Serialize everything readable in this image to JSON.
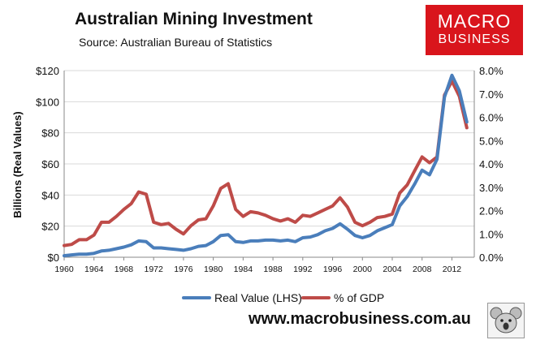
{
  "header": {
    "title": "Australian Mining Investment",
    "subtitle": "Source: Australian Bureau of Statistics"
  },
  "logo": {
    "line1": "MACRO",
    "line2": "BUSINESS",
    "color": "#d9151c"
  },
  "footer": {
    "website": "www.macrobusiness.com.au"
  },
  "mascot": {
    "icon": "koala-emblem-icon"
  },
  "chart_data": {
    "type": "line",
    "ylabel": "Billions (Real Values)",
    "xlabel": "",
    "xlim": [
      1960,
      2015
    ],
    "ylim": [
      0,
      120
    ],
    "y2lim": [
      0,
      8
    ],
    "x_ticks": [
      "1960",
      "1964",
      "1968",
      "1972",
      "1976",
      "1980",
      "1984",
      "1988",
      "1992",
      "1996",
      "2000",
      "2004",
      "2008",
      "2012"
    ],
    "y_ticks": [
      "$0",
      "$20",
      "$40",
      "$60",
      "$80",
      "$100",
      "$120"
    ],
    "y2_ticks": [
      "0.0%",
      "1.0%",
      "2.0%",
      "3.0%",
      "4.0%",
      "5.0%",
      "6.0%",
      "7.0%",
      "8.0%"
    ],
    "grid": true,
    "legend_position": "bottom",
    "series": [
      {
        "name": "Real Value (LHS)",
        "axis": "left",
        "color": "#4a7ebb",
        "x": [
          1960,
          1961,
          1962,
          1963,
          1964,
          1965,
          1966,
          1967,
          1968,
          1969,
          1970,
          1971,
          1972,
          1973,
          1974,
          1975,
          1976,
          1977,
          1978,
          1979,
          1980,
          1981,
          1982,
          1983,
          1984,
          1985,
          1986,
          1987,
          1988,
          1989,
          1990,
          1991,
          1992,
          1993,
          1994,
          1995,
          1996,
          1997,
          1998,
          1999,
          2000,
          2001,
          2002,
          2003,
          2004,
          2005,
          2006,
          2007,
          2008,
          2009,
          2010,
          2011,
          2012,
          2013,
          2014
        ],
        "values": [
          1,
          1.5,
          2,
          2,
          2.5,
          4,
          4.5,
          5.5,
          6.5,
          8,
          10.5,
          10,
          6,
          6,
          5.5,
          5,
          4.5,
          5.5,
          7,
          7.5,
          10,
          14,
          14.5,
          10,
          9.5,
          10.5,
          10.5,
          11,
          11,
          10.5,
          11,
          10,
          12.5,
          13,
          14.5,
          17,
          18.5,
          21.5,
          18,
          14,
          12.5,
          14,
          17,
          19,
          21,
          33,
          39,
          47,
          56,
          53,
          63,
          103,
          117,
          107,
          87
        ]
      },
      {
        "name": "% of GDP",
        "axis": "right",
        "color": "#be4b48",
        "x": [
          1960,
          1961,
          1962,
          1963,
          1964,
          1965,
          1966,
          1967,
          1968,
          1969,
          1970,
          1971,
          1972,
          1973,
          1974,
          1975,
          1976,
          1977,
          1978,
          1979,
          1980,
          1981,
          1982,
          1983,
          1984,
          1985,
          1986,
          1987,
          1988,
          1989,
          1990,
          1991,
          1992,
          1993,
          1994,
          1995,
          1996,
          1997,
          1998,
          1999,
          2000,
          2001,
          2002,
          2003,
          2004,
          2005,
          2006,
          2007,
          2008,
          2009,
          2010,
          2011,
          2012,
          2013,
          2014
        ],
        "values": [
          0.5,
          0.55,
          0.75,
          0.75,
          0.95,
          1.5,
          1.5,
          1.75,
          2.05,
          2.3,
          2.8,
          2.7,
          1.5,
          1.4,
          1.45,
          1.2,
          1.0,
          1.35,
          1.6,
          1.65,
          2.2,
          2.95,
          3.15,
          2.05,
          1.75,
          1.95,
          1.9,
          1.8,
          1.65,
          1.55,
          1.65,
          1.5,
          1.8,
          1.75,
          1.9,
          2.05,
          2.2,
          2.55,
          2.15,
          1.5,
          1.35,
          1.5,
          1.7,
          1.75,
          1.85,
          2.75,
          3.1,
          3.7,
          4.3,
          4.05,
          4.3,
          6.95,
          7.55,
          6.9,
          5.55
        ]
      }
    ]
  }
}
